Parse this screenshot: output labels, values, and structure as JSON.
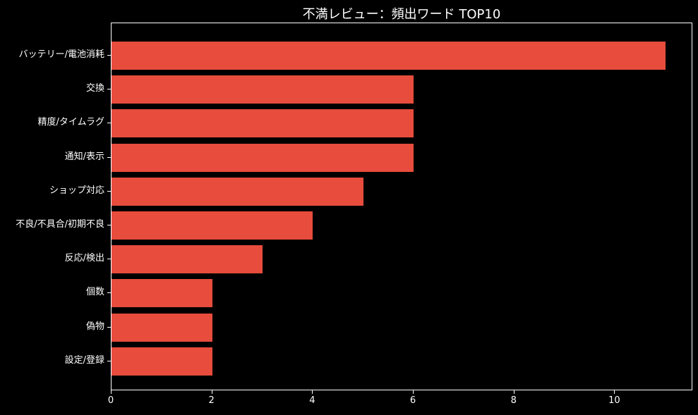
{
  "figure": {
    "background_color": "#000000",
    "text_color": "#ffffff",
    "bar_color": "#e74c3c"
  },
  "chart_data": {
    "type": "bar",
    "orientation": "horizontal",
    "title": "不満レビュー：頻出ワード TOP10",
    "categories": [
      "バッテリー/電池消耗",
      "交換",
      "精度/タイムラグ",
      "通知/表示",
      "ショップ対応",
      "不良/不具合/初期不良",
      "反応/検出",
      "個数",
      "偽物",
      "設定/登録"
    ],
    "values": [
      11,
      6,
      6,
      6,
      5,
      4,
      3,
      2,
      2,
      2
    ],
    "xlabel": "",
    "ylabel": "",
    "xlim": [
      0,
      11.55
    ],
    "x_ticks": [
      0,
      2,
      4,
      6,
      8,
      10
    ],
    "grid": false,
    "legend_position": "none"
  }
}
